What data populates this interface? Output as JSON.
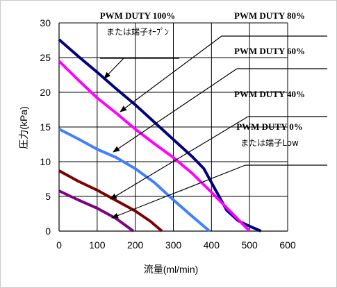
{
  "chart_data": {
    "type": "line",
    "title": "",
    "xlabel": "流量(ml/min)",
    "ylabel": "圧力(kPa)",
    "xlim": [
      0,
      600
    ],
    "ylim": [
      0,
      30
    ],
    "x_ticks": [
      "0",
      "100",
      "200",
      "300",
      "400",
      "500",
      "600"
    ],
    "y_ticks": [
      "0",
      "5",
      "10",
      "15",
      "20",
      "25",
      "30"
    ],
    "grid": true,
    "series": [
      {
        "name": "PWM DUTY 100%",
        "sub": "または端子ｵｰﾌﾟﾝ",
        "color": "#000080",
        "points": [
          [
            0,
            27.6
          ],
          [
            50,
            25.2
          ],
          [
            100,
            22.9
          ],
          [
            150,
            20.5
          ],
          [
            200,
            18.2
          ],
          [
            250,
            15.7
          ],
          [
            300,
            13.2
          ],
          [
            350,
            10.7
          ],
          [
            380,
            9.0
          ],
          [
            400,
            7.0
          ],
          [
            420,
            5.0
          ],
          [
            440,
            3.0
          ],
          [
            470,
            1.5
          ],
          [
            500,
            0.7
          ],
          [
            530,
            0.0
          ]
        ]
      },
      {
        "name": "PWM DUTY 80%",
        "color": "#ff00ff",
        "points": [
          [
            0,
            24.5
          ],
          [
            50,
            21.8
          ],
          [
            100,
            19.2
          ],
          [
            150,
            17.0
          ],
          [
            200,
            14.7
          ],
          [
            250,
            12.6
          ],
          [
            300,
            10.6
          ],
          [
            350,
            8.3
          ],
          [
            400,
            5.6
          ],
          [
            450,
            2.8
          ],
          [
            500,
            0.0
          ]
        ]
      },
      {
        "name": "PWM DUTY 60%",
        "color": "#4080ff",
        "points": [
          [
            0,
            14.7
          ],
          [
            50,
            13.3
          ],
          [
            100,
            11.8
          ],
          [
            150,
            10.6
          ],
          [
            200,
            9.0
          ],
          [
            250,
            7.0
          ],
          [
            300,
            4.5
          ],
          [
            350,
            2.1
          ],
          [
            395,
            0.0
          ]
        ]
      },
      {
        "name": "PWM DUTY 40%",
        "color": "#800000",
        "points": [
          [
            0,
            8.7
          ],
          [
            50,
            7.2
          ],
          [
            100,
            5.9
          ],
          [
            150,
            4.4
          ],
          [
            200,
            2.9
          ],
          [
            240,
            1.4
          ],
          [
            270,
            0.0
          ]
        ]
      },
      {
        "name": "PWM DUTY 0%",
        "sub": "または端子Low",
        "color": "#800080",
        "points": [
          [
            0,
            5.8
          ],
          [
            50,
            4.5
          ],
          [
            100,
            3.3
          ],
          [
            150,
            1.8
          ],
          [
            195,
            0.0
          ]
        ]
      }
    ],
    "annotations": [
      {
        "label_line1": "PWM DUTY 100%",
        "label_line2": "または端子ｵｰﾌﾟﾝ",
        "series": 0
      },
      {
        "label_line1": "PWM DUTY 80%",
        "series": 1
      },
      {
        "label_line1": "PWM DUTY 60%",
        "series": 2
      },
      {
        "label_line1": "PWM DUTY 40%",
        "series": 3
      },
      {
        "label_line1": "PWM DUTY 0%",
        "label_line2": "または端子Low",
        "series": 4
      }
    ]
  }
}
